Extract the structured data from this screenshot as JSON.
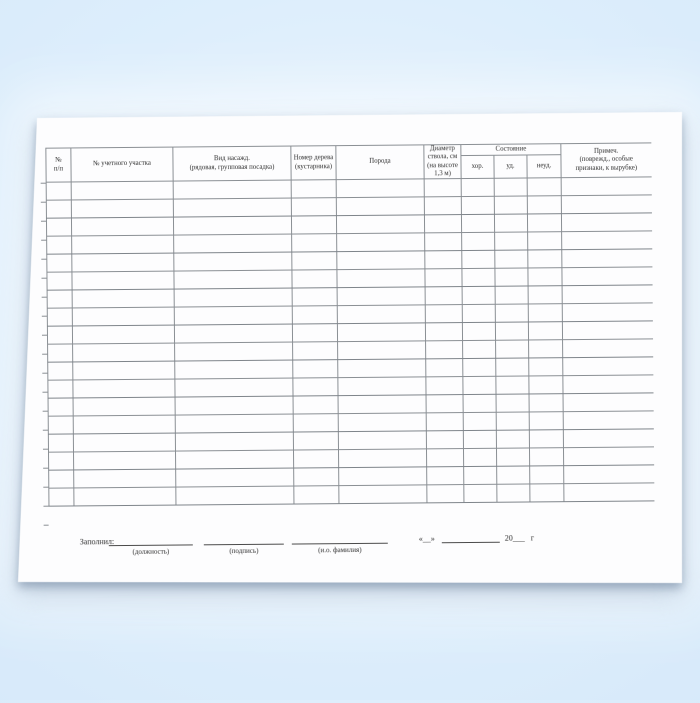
{
  "colors": {
    "background_blue": "#d5e8fa",
    "paper": "#fdfdfe",
    "table_line": "#8a8f94",
    "text": "#2e2e2e"
  },
  "table": {
    "condition_group_label": "Состояние",
    "columns": [
      {
        "id": "row-number",
        "label": "№ п/п",
        "header_lines": [
          "№",
          "п/п"
        ]
      },
      {
        "id": "plot-number",
        "label": "№ учетного участка",
        "header_lines": [
          "№ учетного участка"
        ]
      },
      {
        "id": "planting-type",
        "label": "Вид насажд. (рядовая, групповая посадка)",
        "header_lines": [
          "Вид насажд.",
          "(рядовая, групповая посадка)"
        ]
      },
      {
        "id": "tree-number",
        "label": "Номер дерева (кустарника)",
        "header_lines": [
          "Номер дерева",
          "(кустарника)"
        ]
      },
      {
        "id": "species",
        "label": "Порода",
        "header_lines": [
          "Порода"
        ]
      },
      {
        "id": "trunk-diameter",
        "label": "Диаметр ствола, см (на высоте 1,3 м)",
        "header_lines": [
          "Диаметр",
          "ствола, см",
          "(на высоте",
          "1,3 м)"
        ]
      },
      {
        "id": "condition-good",
        "label": "хор.",
        "group": "Состояние",
        "header_lines": [
          "хор."
        ]
      },
      {
        "id": "condition-fair",
        "label": "уд.",
        "group": "Состояние",
        "header_lines": [
          "уд."
        ]
      },
      {
        "id": "condition-poor",
        "label": "неуд.",
        "group": "Состояние",
        "header_lines": [
          "неуд."
        ]
      },
      {
        "id": "notes",
        "label": "Примеч. (поврежд., особые признаки, к вырубке)",
        "header_lines": [
          "Примеч.",
          "(поврежд., особые",
          "признаки, к вырубке)"
        ]
      }
    ],
    "row_count": 18,
    "body_cells": ""
  },
  "footer": {
    "filled_by_label": "Заполнил:",
    "blank_labels": [
      "(должность)",
      "(подпись)",
      "(и.о. фамилия)"
    ],
    "date_quote": "«__»",
    "date_year_label": "20___",
    "date_era_label": "г"
  }
}
